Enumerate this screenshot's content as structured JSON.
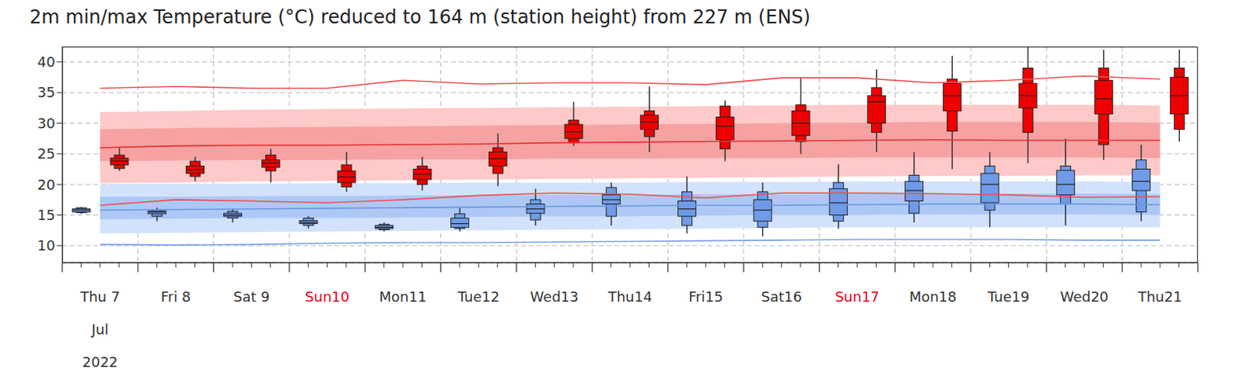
{
  "chart_data": {
    "type": "boxplot",
    "title": "2m min/max Temperature (°C) reduced to 164 m (station height) from 227 m (ENS)",
    "categories": [
      "Thu 7",
      "Fri 8",
      "Sat 9",
      "Sun10",
      "Mon11",
      "Tue12",
      "Wed13",
      "Thu14",
      "Fri15",
      "Sat16",
      "Sun17",
      "Mon18",
      "Tue19",
      "Wed20",
      "Thu21"
    ],
    "category_colors": [
      "#333333",
      "#333333",
      "#333333",
      "#e8001c",
      "#333333",
      "#333333",
      "#333333",
      "#333333",
      "#333333",
      "#333333",
      "#e8001c",
      "#333333",
      "#333333",
      "#333333",
      "#333333"
    ],
    "x_sublabels": [
      "Jul",
      "2022"
    ],
    "ylim": [
      7.2,
      42.5
    ],
    "yticks": [
      10,
      15,
      20,
      25,
      30,
      35,
      40
    ],
    "grid": true,
    "series": [
      {
        "type": "band",
        "color": "#fdc9c9",
        "values": [
          [
            20.2,
            31.8
          ],
          [
            20.3,
            32.0
          ],
          [
            20.5,
            32.2
          ],
          [
            20.6,
            32.3
          ],
          [
            20.7,
            32.4
          ],
          [
            20.8,
            32.5
          ],
          [
            20.9,
            32.6
          ],
          [
            21.0,
            32.7
          ],
          [
            21.1,
            32.8
          ],
          [
            21.2,
            32.9
          ],
          [
            21.3,
            33.0
          ],
          [
            21.4,
            33.0
          ],
          [
            21.4,
            33.0
          ],
          [
            21.5,
            33.0
          ],
          [
            21.5,
            32.9
          ]
        ]
      },
      {
        "type": "band",
        "color": "#f6a2a2",
        "values": [
          [
            23.8,
            29.0
          ],
          [
            23.9,
            29.2
          ],
          [
            24.0,
            29.3
          ],
          [
            24.0,
            29.4
          ],
          [
            24.1,
            29.5
          ],
          [
            24.1,
            29.6
          ],
          [
            24.2,
            29.7
          ],
          [
            24.2,
            29.8
          ],
          [
            24.3,
            29.9
          ],
          [
            24.3,
            30.0
          ],
          [
            24.4,
            30.1
          ],
          [
            24.4,
            30.2
          ],
          [
            24.4,
            30.2
          ],
          [
            24.4,
            30.2
          ],
          [
            24.3,
            30.1
          ]
        ]
      },
      {
        "type": "band",
        "color": "#d2e2fc",
        "values": [
          [
            12.0,
            20.0
          ],
          [
            12.1,
            20.1
          ],
          [
            12.2,
            20.1
          ],
          [
            12.3,
            20.2
          ],
          [
            12.4,
            20.2
          ],
          [
            12.5,
            20.3
          ],
          [
            12.6,
            20.3
          ],
          [
            12.7,
            20.3
          ],
          [
            12.8,
            20.4
          ],
          [
            12.9,
            20.4
          ],
          [
            13.0,
            20.5
          ],
          [
            13.0,
            20.5
          ],
          [
            13.0,
            20.5
          ],
          [
            13.0,
            20.5
          ],
          [
            13.0,
            20.4
          ]
        ]
      },
      {
        "type": "band",
        "color": "#adc8f5",
        "values": [
          [
            14.3,
            18.0
          ],
          [
            14.4,
            18.0
          ],
          [
            14.5,
            18.1
          ],
          [
            14.5,
            18.1
          ],
          [
            14.6,
            18.2
          ],
          [
            14.7,
            18.2
          ],
          [
            14.8,
            18.3
          ],
          [
            14.8,
            18.3
          ],
          [
            14.9,
            18.4
          ],
          [
            15.0,
            18.4
          ],
          [
            15.0,
            18.5
          ],
          [
            15.1,
            18.5
          ],
          [
            15.1,
            18.5
          ],
          [
            15.1,
            18.5
          ],
          [
            15.0,
            18.4
          ]
        ]
      },
      {
        "type": "line",
        "color": "#e83030",
        "values": [
          26.0,
          26.3,
          26.4,
          26.4,
          26.5,
          26.6,
          26.8,
          26.9,
          27.0,
          27.1,
          27.2,
          27.3,
          27.2,
          27.2,
          27.2
        ]
      },
      {
        "type": "line",
        "color": "#f05050",
        "values": [
          35.7,
          36.0,
          35.7,
          35.7,
          37.0,
          36.4,
          36.6,
          36.6,
          36.3,
          37.4,
          37.4,
          36.6,
          37.0,
          37.7,
          37.2
        ]
      },
      {
        "type": "line",
        "color": "#6c98e0",
        "values": [
          15.8,
          15.9,
          16.0,
          16.1,
          16.2,
          16.3,
          16.4,
          16.5,
          16.6,
          16.6,
          16.7,
          16.8,
          16.8,
          16.8,
          16.7
        ]
      },
      {
        "type": "line",
        "color": "#7aa0ea",
        "values": [
          10.2,
          10.1,
          10.2,
          10.4,
          10.5,
          10.5,
          10.6,
          10.7,
          10.8,
          10.9,
          11.0,
          11.0,
          11.0,
          10.9,
          10.9
        ]
      },
      {
        "type": "line",
        "color": "#f05050",
        "values": [
          16.6,
          17.5,
          17.3,
          17.0,
          17.5,
          18.2,
          18.6,
          18.4,
          17.8,
          18.6,
          18.6,
          18.5,
          18.3,
          17.9,
          18.0
        ]
      },
      {
        "type": "box",
        "color": "#6f9be8",
        "values": [
          [
            15.2,
            15.4,
            15.5,
            15.8,
            16.0,
            16.2,
            16.3
          ],
          [
            14.0,
            14.8,
            15.2,
            15.5,
            15.7,
            15.9,
            16.2
          ],
          [
            13.8,
            14.5,
            14.8,
            15.0,
            15.3,
            15.6,
            16.0
          ],
          [
            12.8,
            13.3,
            13.6,
            13.8,
            14.1,
            14.5,
            14.8
          ],
          [
            12.3,
            12.6,
            12.8,
            13.0,
            13.3,
            13.5,
            13.8
          ],
          [
            12.3,
            12.8,
            13.0,
            13.6,
            14.5,
            15.2,
            16.3
          ],
          [
            13.3,
            14.2,
            15.3,
            16.0,
            16.8,
            17.5,
            19.3
          ],
          [
            13.3,
            14.8,
            16.8,
            17.5,
            18.3,
            19.5,
            20.3
          ],
          [
            12.0,
            13.3,
            14.8,
            16.0,
            17.3,
            18.8,
            21.3
          ],
          [
            11.5,
            13.0,
            14.0,
            15.8,
            17.5,
            18.8,
            20.3
          ],
          [
            12.8,
            14.0,
            15.0,
            17.0,
            19.3,
            20.3,
            23.3
          ],
          [
            13.8,
            15.3,
            17.3,
            19.0,
            20.5,
            21.5,
            25.3
          ],
          [
            13.0,
            15.8,
            17.0,
            20.0,
            21.8,
            23.0,
            25.3
          ],
          [
            13.3,
            16.8,
            18.3,
            20.0,
            22.3,
            23.0,
            27.5
          ],
          [
            14.0,
            15.5,
            19.0,
            20.5,
            22.5,
            24.0,
            26.5
          ]
        ]
      },
      {
        "type": "box",
        "color": "#ee0000",
        "values": [
          [
            22.2,
            22.6,
            23.2,
            23.8,
            24.3,
            24.8,
            26.0
          ],
          [
            20.5,
            21.3,
            21.8,
            22.4,
            23.0,
            23.8,
            24.5
          ],
          [
            20.3,
            22.2,
            22.8,
            23.5,
            24.0,
            24.8,
            25.8
          ],
          [
            18.8,
            19.6,
            20.3,
            21.2,
            22.2,
            23.2,
            25.3
          ],
          [
            19.0,
            20.0,
            20.8,
            21.7,
            22.5,
            23.0,
            24.5
          ],
          [
            19.7,
            21.8,
            23.0,
            24.2,
            25.3,
            26.0,
            28.3
          ],
          [
            26.3,
            26.8,
            27.5,
            28.6,
            29.8,
            30.5,
            33.5
          ],
          [
            25.3,
            27.8,
            29.0,
            30.2,
            31.3,
            32.0,
            36.0
          ],
          [
            23.8,
            25.8,
            27.3,
            29.5,
            31.0,
            32.8,
            33.7
          ],
          [
            25.0,
            27.0,
            28.0,
            30.0,
            32.0,
            33.0,
            37.5
          ],
          [
            25.3,
            28.5,
            30.0,
            33.5,
            34.5,
            35.8,
            38.8
          ],
          [
            22.5,
            28.7,
            32.0,
            34.5,
            36.5,
            37.2,
            41.0
          ],
          [
            23.5,
            28.5,
            32.5,
            34.5,
            36.5,
            39.0,
            42.5
          ],
          [
            24.0,
            26.5,
            31.5,
            34.0,
            37.0,
            39.0,
            42.0
          ],
          [
            27.0,
            29.0,
            31.5,
            34.5,
            37.5,
            39.0,
            42.0
          ]
        ]
      }
    ]
  }
}
